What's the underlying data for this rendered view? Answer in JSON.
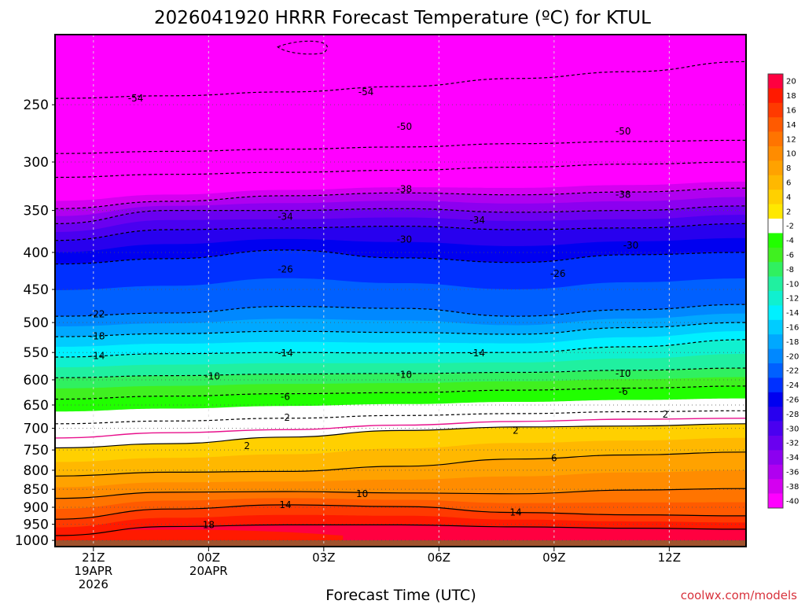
{
  "chart_data": {
    "type": "heatmap",
    "title": "2026041920 HRRR Forecast Temperature (ºC) for KTUL",
    "xlabel": "Forecast Time (UTC)",
    "ylabel": "",
    "credit": "coolwx.com/models",
    "x_ticks": [
      {
        "hour": 1,
        "lines": [
          "21Z",
          "19APR",
          "2026"
        ]
      },
      {
        "hour": 4,
        "lines": [
          "00Z",
          "20APR"
        ]
      },
      {
        "hour": 7,
        "lines": [
          "03Z"
        ]
      },
      {
        "hour": 10,
        "lines": [
          "06Z"
        ]
      },
      {
        "hour": 13,
        "lines": [
          "09Z"
        ]
      },
      {
        "hour": 16,
        "lines": [
          "12Z"
        ]
      }
    ],
    "xlim_hours": [
      0,
      18
    ],
    "y_ticks": [
      250,
      300,
      350,
      400,
      450,
      500,
      550,
      600,
      650,
      700,
      750,
      800,
      850,
      900,
      950,
      1000
    ],
    "ylim_hpa": [
      1020,
      200
    ],
    "y_scale": "log",
    "colorbar": {
      "position": "right",
      "labels": [
        "20",
        "18",
        "16",
        "14",
        "12",
        "10",
        "8",
        "6",
        "4",
        "2",
        "-2",
        "-4",
        "-6",
        "-8",
        "-10",
        "-12",
        "-14",
        "-16",
        "-18",
        "-20",
        "-22",
        "-24",
        "-26",
        "-28",
        "-30",
        "-32",
        "-34",
        "-36",
        "-38",
        "-40"
      ],
      "colors": [
        "#ff0040",
        "#ff1a00",
        "#ff3a00",
        "#ff5a00",
        "#ff7400",
        "#ff8c00",
        "#ffa200",
        "#ffb800",
        "#ffd000",
        "#ffe800",
        "#ffffff",
        "#21ff00",
        "#40f020",
        "#30f060",
        "#20f0a0",
        "#10f0d0",
        "#00f0ff",
        "#00ccff",
        "#00a8ff",
        "#0088ff",
        "#0060ff",
        "#0030ff",
        "#0000f0",
        "#2800ee",
        "#4a00f0",
        "#6a00f0",
        "#8c00f0",
        "#b000f0",
        "#d400f0",
        "#ff00ff"
      ]
    },
    "hour_samples": [
      0,
      3,
      6,
      9,
      12,
      15,
      18
    ],
    "isotherms": [
      {
        "temp": 18,
        "label": "18",
        "p": [
          985,
          957,
          952,
          952,
          958,
          962,
          965
        ]
      },
      {
        "temp": 14,
        "label": "14",
        "p": [
          935,
          905,
          893,
          898,
          915,
          922,
          925
        ]
      },
      {
        "temp": 10,
        "label": "10",
        "p": [
          875,
          858,
          856,
          860,
          862,
          852,
          848
        ]
      },
      {
        "temp": 6,
        "label": "6",
        "p": [
          815,
          805,
          803,
          790,
          772,
          762,
          755
        ]
      },
      {
        "temp": 2,
        "label": "2",
        "p": [
          745,
          735,
          720,
          705,
          697,
          695,
          690
        ]
      },
      {
        "temp": 0,
        "label": "",
        "p": [
          722,
          710,
          703,
          693,
          685,
          680,
          678
        ]
      },
      {
        "temp": -2,
        "label": "-2",
        "p": [
          690,
          684,
          678,
          672,
          668,
          664,
          662
        ]
      },
      {
        "temp": -6,
        "label": "-6",
        "p": [
          638,
          632,
          627,
          625,
          620,
          616,
          612
        ]
      },
      {
        "temp": -10,
        "label": "-10",
        "p": [
          596,
          592,
          589,
          588,
          586,
          582,
          578
        ]
      },
      {
        "temp": -14,
        "label": "-14",
        "p": [
          558,
          552,
          550,
          551,
          550,
          540,
          528
        ]
      },
      {
        "temp": -18,
        "label": "-18",
        "p": [
          523,
          518,
          514,
          516,
          519,
          508,
          500
        ]
      },
      {
        "temp": -22,
        "label": "-22",
        "p": [
          490,
          485,
          475,
          478,
          490,
          480,
          472
        ]
      },
      {
        "temp": -26,
        "label": "-26",
        "p": [
          415,
          408,
          397,
          407,
          413,
          403,
          400
        ]
      },
      {
        "temp": -30,
        "label": "-30",
        "p": [
          385,
          372,
          370,
          368,
          372,
          370,
          365
        ]
      },
      {
        "temp": -34,
        "label": "-34",
        "p": [
          365,
          350,
          350,
          348,
          352,
          350,
          345
        ]
      },
      {
        "temp": -38,
        "label": "-38",
        "p": [
          348,
          340,
          334,
          331,
          333,
          330,
          326
        ]
      },
      {
        "temp": -46,
        "label": "",
        "p": [
          315,
          312,
          310,
          308,
          305,
          302,
          300
        ]
      },
      {
        "temp": -50,
        "label": "-50",
        "p": [
          292,
          290,
          288,
          286,
          283,
          281,
          280
        ]
      },
      {
        "temp": -54,
        "label": "-54",
        "p": [
          245,
          243,
          240,
          236,
          230,
          225,
          218
        ]
      }
    ],
    "contour_label_positions": [
      {
        "text": "-54",
        "hour": 2.1,
        "p": 245
      },
      {
        "text": "-54",
        "hour": 8.1,
        "p": 240
      },
      {
        "text": "-50",
        "hour": 9.1,
        "p": 268
      },
      {
        "text": "-50",
        "hour": 14.8,
        "p": 272
      },
      {
        "text": "-38",
        "hour": 9.1,
        "p": 327
      },
      {
        "text": "-38",
        "hour": 14.8,
        "p": 333
      },
      {
        "text": "-34",
        "hour": 6.0,
        "p": 357
      },
      {
        "text": "-34",
        "hour": 11.0,
        "p": 361
      },
      {
        "text": "-30",
        "hour": 9.1,
        "p": 384
      },
      {
        "text": "-30",
        "hour": 15.0,
        "p": 391
      },
      {
        "text": "-26",
        "hour": 6.0,
        "p": 422
      },
      {
        "text": "-26",
        "hour": 13.1,
        "p": 428
      },
      {
        "text": "-22",
        "hour": 1.1,
        "p": 487
      },
      {
        "text": "-18",
        "hour": 1.1,
        "p": 522
      },
      {
        "text": "-14",
        "hour": 1.1,
        "p": 556
      },
      {
        "text": "-14",
        "hour": 6.0,
        "p": 551
      },
      {
        "text": "-14",
        "hour": 11.0,
        "p": 551
      },
      {
        "text": "-10",
        "hour": 4.1,
        "p": 593
      },
      {
        "text": "-10",
        "hour": 9.1,
        "p": 590
      },
      {
        "text": "-10",
        "hour": 14.8,
        "p": 588
      },
      {
        "text": "-6",
        "hour": 6.0,
        "p": 633
      },
      {
        "text": "-6",
        "hour": 14.8,
        "p": 623
      },
      {
        "text": "-2",
        "hour": 6.0,
        "p": 677
      },
      {
        "text": "2",
        "hour": 15.9,
        "p": 670
      },
      {
        "text": "2",
        "hour": 12.0,
        "p": 705
      },
      {
        "text": "2",
        "hour": 5.0,
        "p": 740
      },
      {
        "text": "6",
        "hour": 13.0,
        "p": 770
      },
      {
        "text": "10",
        "hour": 8.0,
        "p": 862
      },
      {
        "text": "14",
        "hour": 6.0,
        "p": 893
      },
      {
        "text": "14",
        "hour": 12.0,
        "p": 915
      },
      {
        "text": "18",
        "hour": 4.0,
        "p": 952
      }
    ]
  }
}
